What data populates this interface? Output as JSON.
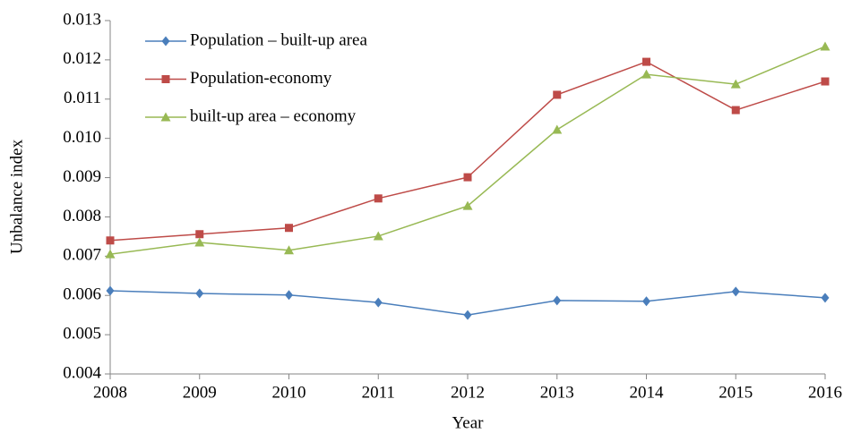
{
  "chart_data": {
    "type": "line",
    "x_label": "Year",
    "y_label": "Unbalance index",
    "x": [
      2008,
      2009,
      2010,
      2011,
      2012,
      2013,
      2014,
      2015,
      2016
    ],
    "xlim": [
      2008,
      2016
    ],
    "xticks": [
      2008,
      2009,
      2010,
      2011,
      2012,
      2013,
      2014,
      2015,
      2016
    ],
    "ylim": [
      0.004,
      0.013
    ],
    "yticks": [
      0.004,
      0.005,
      0.006,
      0.007,
      0.008,
      0.009,
      {
        "value": 0.01,
        "label": "0.010"
      },
      0.011,
      0.012,
      0.013
    ],
    "legend": "upper left",
    "series": [
      {
        "name": "Population – built-up area",
        "color": "#4a7ebb",
        "marker": "diamond",
        "values": [
          0.00612,
          0.00605,
          0.00601,
          0.00582,
          0.0055,
          0.00587,
          0.00585,
          0.0061,
          0.00594
        ]
      },
      {
        "name": "Population-economy",
        "color": "#be4b48",
        "marker": "square",
        "values": [
          0.0074,
          0.00756,
          0.00772,
          0.00847,
          0.00901,
          0.01111,
          0.01195,
          0.01072,
          0.01145
        ]
      },
      {
        "name": "built-up area – economy",
        "color": "#98b954",
        "marker": "triangle",
        "values": [
          0.00705,
          0.00735,
          0.00715,
          0.00751,
          0.00828,
          0.01022,
          0.01163,
          0.01138,
          0.01234
        ]
      }
    ]
  }
}
